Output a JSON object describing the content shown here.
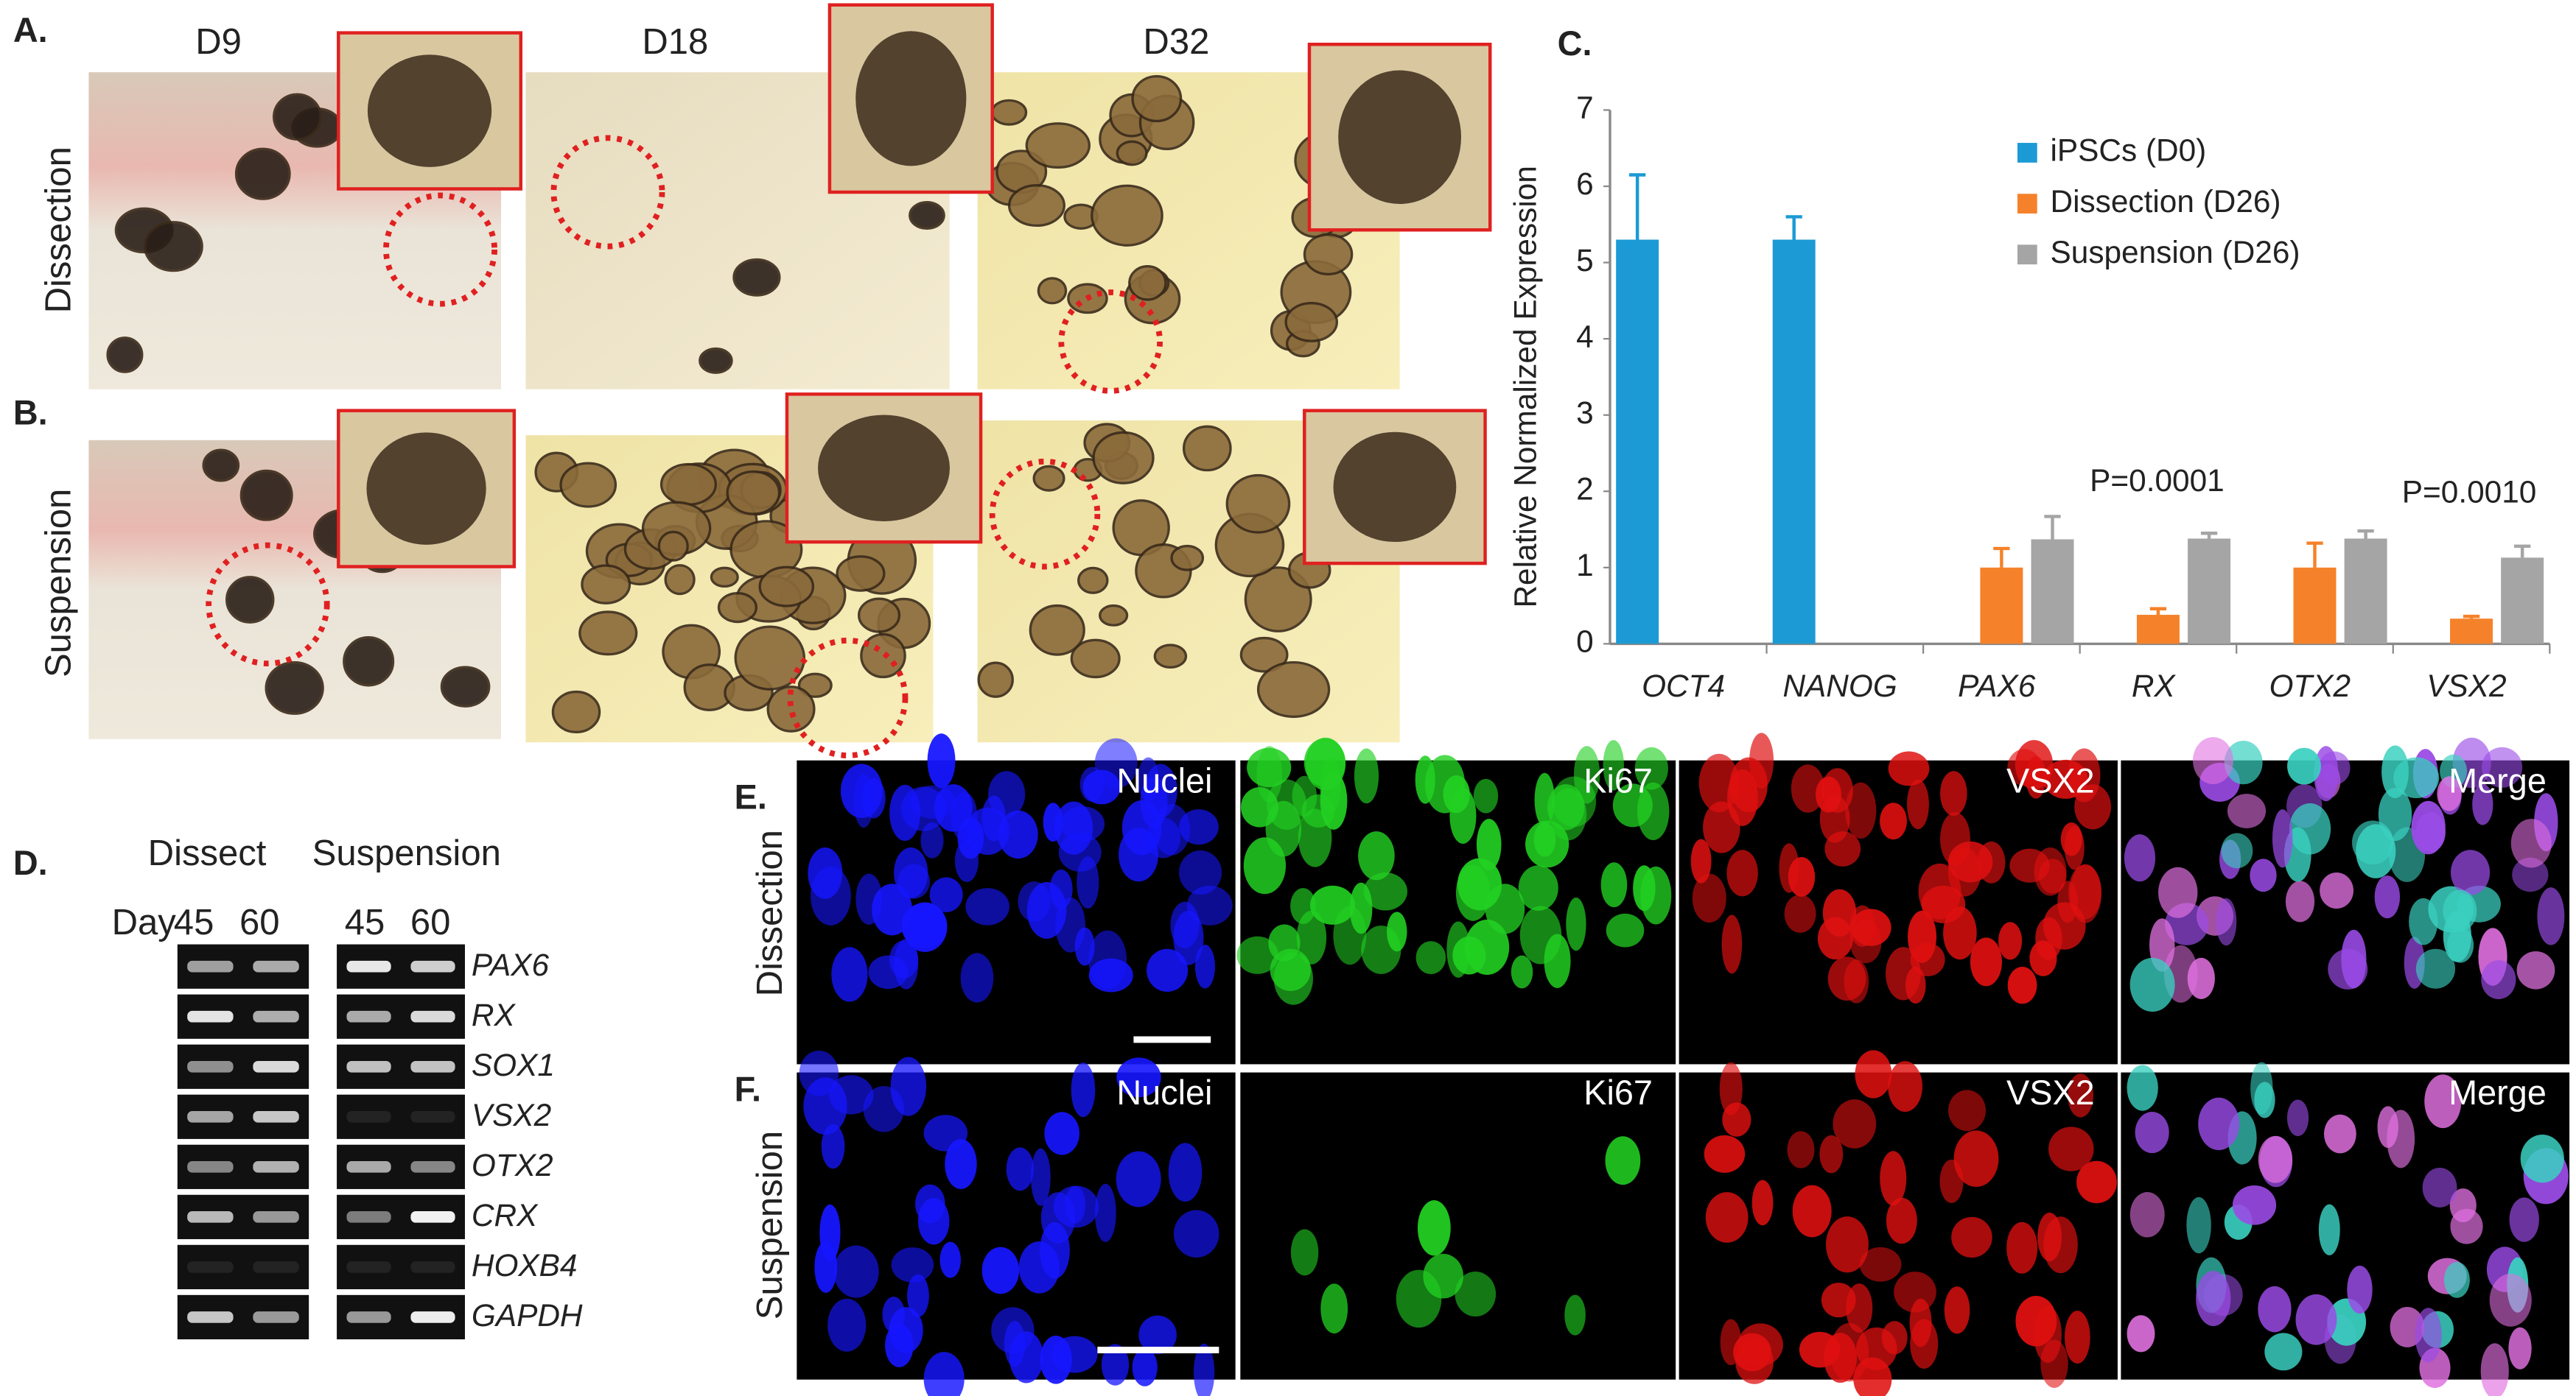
{
  "panels": {
    "A": {
      "label": "A.",
      "row_label": "Dissection",
      "days": [
        "D9",
        "D18",
        "D32"
      ]
    },
    "B": {
      "label": "B.",
      "row_label": "Suspension"
    },
    "D": {
      "label": "D.",
      "headers": [
        "Dissect",
        "Suspension"
      ],
      "day_label": "Day",
      "lanes": [
        "45",
        "60",
        "45",
        "60"
      ],
      "genes": [
        "PAX6",
        "RX",
        "SOX1",
        "VSX2",
        "OTX2",
        "CRX",
        "HOXB4",
        "GAPDH"
      ]
    },
    "E": {
      "label": "E.",
      "row_label": "Dissection",
      "channels": [
        "Nuclei",
        "Ki67",
        "VSX2",
        "Merge"
      ]
    },
    "F": {
      "label": "F.",
      "row_label": "Suspension",
      "channels": [
        "Nuclei",
        "Ki67",
        "VSX2",
        "Merge"
      ]
    }
  },
  "chart_data": {
    "type": "bar",
    "panel_label": "C.",
    "y_label": "Relative Normalized Expression",
    "categories": [
      "OCT4",
      "NANOG",
      "PAX6",
      "RX",
      "OTX2",
      "VSX2"
    ],
    "series": [
      {
        "name": "iPSCs (D0)",
        "color": "#1b9ad6",
        "values": [
          5.3,
          5.3,
          null,
          null,
          null,
          null
        ],
        "errors": [
          0.85,
          0.3,
          null,
          null,
          null,
          null
        ]
      },
      {
        "name": "Dissection (D26)",
        "color": "#f5822a",
        "values": [
          null,
          null,
          1.0,
          0.38,
          1.0,
          0.33
        ],
        "errors": [
          null,
          null,
          0.25,
          0.08,
          0.32,
          0.03
        ]
      },
      {
        "name": "Suspension (D26)",
        "color": "#a5a5a5",
        "values": [
          null,
          null,
          1.37,
          1.38,
          1.38,
          1.13
        ],
        "errors": [
          null,
          null,
          0.3,
          0.07,
          0.1,
          0.15
        ]
      }
    ],
    "annotations": [
      "P=0.0001",
      "P=0.0010"
    ],
    "ylim": [
      0,
      7
    ],
    "yticks": [
      0,
      1,
      2,
      3,
      4,
      5,
      6,
      7
    ],
    "grid": false
  }
}
